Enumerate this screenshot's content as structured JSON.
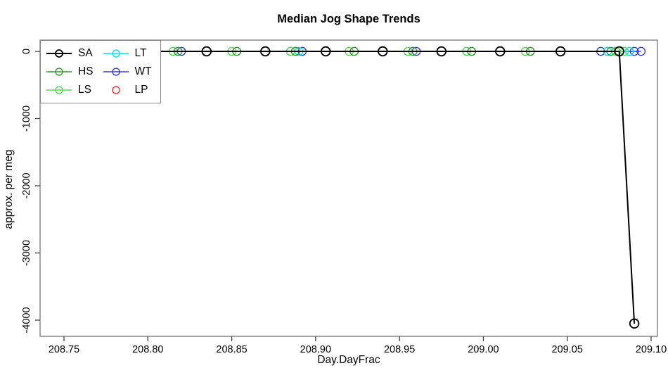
{
  "chart_data": {
    "type": "line",
    "title": "Median Jog Shape Trends",
    "xlabel": "Day.DayFrac",
    "ylabel": "approx. per meg",
    "xlim": [
      208.75,
      209.1
    ],
    "ylim": [
      -4000,
      0
    ],
    "grid": false,
    "legend_position": "top-left",
    "legend_columns": 2,
    "x_ticks": [
      208.75,
      208.8,
      208.85,
      208.9,
      208.95,
      209.0,
      209.05,
      209.1
    ],
    "x_tick_labels": [
      "208.75",
      "208.80",
      "208.85",
      "208.90",
      "208.95",
      "209.00",
      "209.05",
      "209.10"
    ],
    "y_ticks": [
      0,
      -1000,
      -2000,
      -3000,
      -4000
    ],
    "y_tick_labels": [
      "0",
      "-1000",
      "-2000",
      "-3000",
      "-4000"
    ],
    "series": [
      {
        "name": "SA",
        "color": "#000000",
        "marker": "open-circle",
        "line": true,
        "points": [
          [
            208.8,
            0
          ],
          [
            208.835,
            0
          ],
          [
            208.87,
            0
          ],
          [
            208.906,
            0
          ],
          [
            208.94,
            0
          ],
          [
            208.975,
            0
          ],
          [
            209.01,
            0
          ],
          [
            209.046,
            0
          ],
          [
            209.081,
            0
          ],
          [
            209.09,
            -4050
          ]
        ]
      },
      {
        "name": "HS",
        "color": "#2e992e",
        "marker": "open-circle",
        "line": true,
        "points": [
          [
            208.818,
            0
          ],
          [
            208.853,
            0
          ],
          [
            208.888,
            0
          ],
          [
            208.923,
            0
          ],
          [
            208.958,
            0
          ],
          [
            208.993,
            0
          ],
          [
            209.028,
            0
          ],
          [
            209.076,
            0
          ]
        ]
      },
      {
        "name": "LS",
        "color": "#4be14b",
        "marker": "open-circle",
        "line": true,
        "points": [
          [
            208.815,
            0
          ],
          [
            208.85,
            0
          ],
          [
            208.885,
            0
          ],
          [
            208.92,
            0
          ],
          [
            208.955,
            0
          ],
          [
            208.99,
            0
          ],
          [
            209.025,
            0
          ],
          [
            209.079,
            0
          ],
          [
            209.084,
            0
          ]
        ]
      },
      {
        "name": "LT",
        "color": "#00E5EE",
        "marker": "open-circle",
        "line": true,
        "points": [
          [
            208.89,
            0
          ],
          [
            209.074,
            0
          ],
          [
            209.087,
            0
          ]
        ]
      },
      {
        "name": "WT",
        "color": "#3b3bdd",
        "marker": "open-circle",
        "line": true,
        "points": [
          [
            208.82,
            0
          ],
          [
            208.892,
            0
          ],
          [
            208.96,
            0
          ],
          [
            209.07,
            0
          ],
          [
            209.09,
            0
          ],
          [
            209.094,
            0
          ]
        ]
      },
      {
        "name": "LP",
        "color": "#ee3333",
        "marker": "open-circle",
        "line": false,
        "points": []
      }
    ]
  }
}
